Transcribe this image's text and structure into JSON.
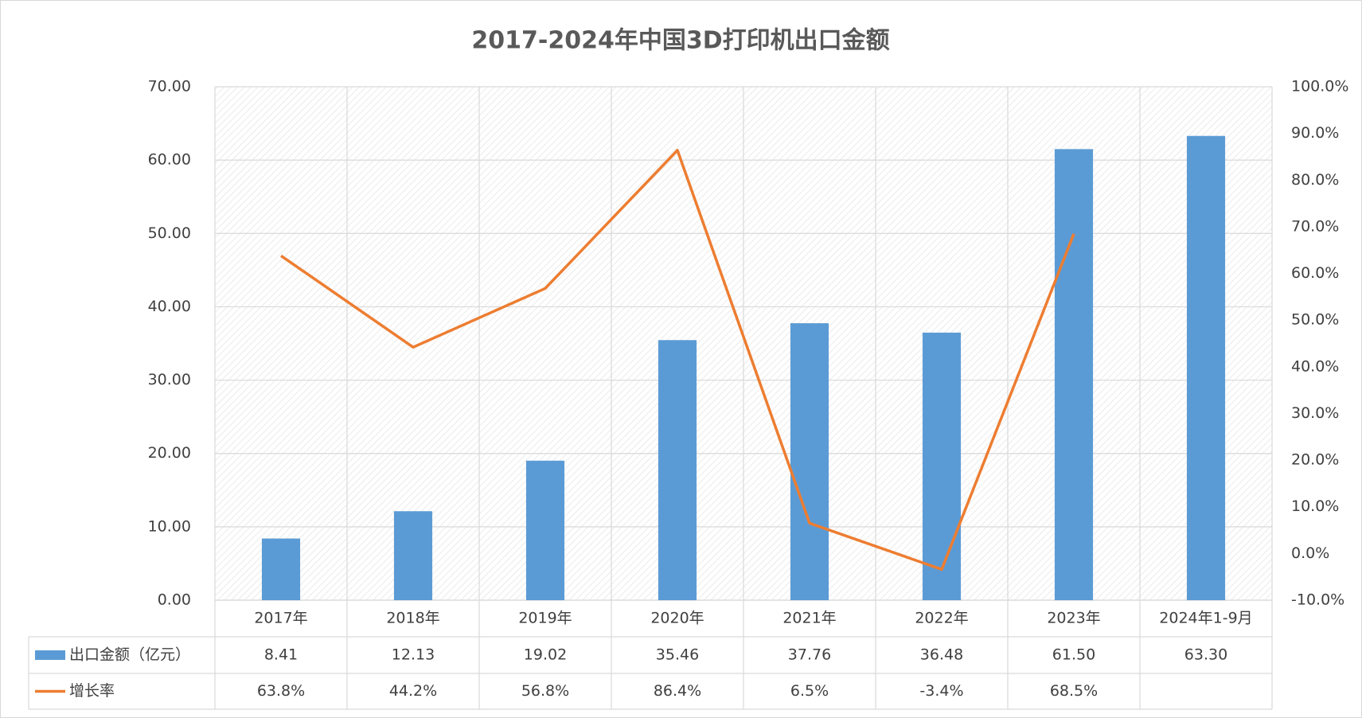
{
  "chart_data": {
    "type": "bar-line",
    "title": "2017-2024年中国3D打印机出口金额",
    "categories": [
      "2017年",
      "2018年",
      "2019年",
      "2020年",
      "2021年",
      "2022年",
      "2023年",
      "2024年1-9月"
    ],
    "series": [
      {
        "name": "出口金额（亿元）",
        "type": "bar",
        "color": "#5b9bd5",
        "values": [
          8.41,
          12.13,
          19.02,
          35.46,
          37.76,
          36.48,
          61.5,
          63.3
        ],
        "value_labels": [
          "8.41",
          "12.13",
          "19.02",
          "35.46",
          "37.76",
          "36.48",
          "61.50",
          "63.30"
        ]
      },
      {
        "name": "增长率",
        "type": "line",
        "axis": "y2",
        "color": "#ed7d31",
        "values": [
          63.8,
          44.2,
          56.8,
          86.4,
          6.5,
          -3.4,
          68.5,
          null
        ],
        "value_labels": [
          "63.8%",
          "44.2%",
          "56.8%",
          "86.4%",
          "6.5%",
          "-3.4%",
          "68.5%",
          null
        ]
      }
    ],
    "ylim": [
      0,
      70
    ],
    "yticks": [
      {
        "value": 0,
        "label": "0.00"
      },
      {
        "value": 10,
        "label": "10.00"
      },
      {
        "value": 20,
        "label": "20.00"
      },
      {
        "value": 30,
        "label": "30.00"
      },
      {
        "value": 40,
        "label": "40.00"
      },
      {
        "value": 50,
        "label": "50.00"
      },
      {
        "value": 60,
        "label": "60.00"
      },
      {
        "value": 70,
        "label": "70.00"
      }
    ],
    "y2lim": [
      -10,
      100
    ],
    "y2ticks": [
      {
        "value": -10,
        "label": "-10.0%"
      },
      {
        "value": 0,
        "label": "0.0%"
      },
      {
        "value": 10,
        "label": "10.0%"
      },
      {
        "value": 20,
        "label": "20.0%"
      },
      {
        "value": 30,
        "label": "30.0%"
      },
      {
        "value": 40,
        "label": "40.0%"
      },
      {
        "value": 50,
        "label": "50.0%"
      },
      {
        "value": 60,
        "label": "60.0%"
      },
      {
        "value": 70,
        "label": "70.0%"
      },
      {
        "value": 80,
        "label": "80.0%"
      },
      {
        "value": 90,
        "label": "90.0%"
      },
      {
        "value": 100,
        "label": "100.0%"
      }
    ],
    "grid": true,
    "data_table": true
  }
}
